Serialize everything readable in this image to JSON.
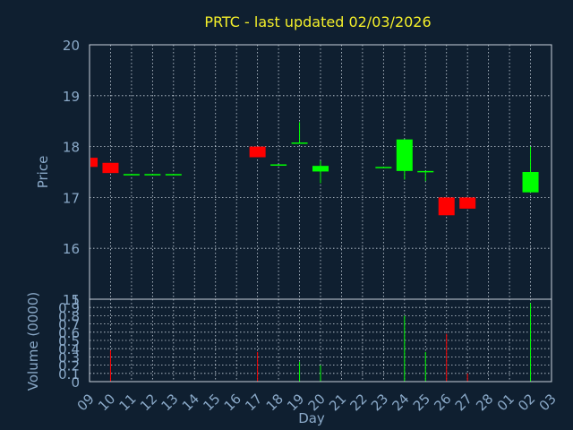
{
  "chart_data": {
    "type": "candlestick",
    "title": "PRTC - last updated 02/03/2026",
    "xlabel": "Day",
    "x_ticks": [
      "09",
      "10",
      "11",
      "12",
      "13",
      "14",
      "15",
      "16",
      "17",
      "18",
      "19",
      "20",
      "21",
      "22",
      "23",
      "24",
      "25",
      "26",
      "27",
      "28",
      "01",
      "02",
      "03"
    ],
    "price_panel": {
      "ylabel": "Price",
      "ylim": [
        15.0,
        20.0
      ],
      "y_ticks": [
        "15",
        "16",
        "17",
        "18",
        "19",
        "20"
      ],
      "candles": [
        {
          "day": "09",
          "open": 17.78,
          "close": 17.6,
          "high": 17.78,
          "low": 17.6
        },
        {
          "day": "10",
          "open": 17.68,
          "close": 17.48,
          "high": 17.68,
          "low": 17.48
        },
        {
          "day": "11",
          "open": 17.46,
          "close": 17.46,
          "high": 17.46,
          "low": 17.46
        },
        {
          "day": "12",
          "open": 17.46,
          "close": 17.46,
          "high": 17.46,
          "low": 17.46
        },
        {
          "day": "13",
          "open": 17.46,
          "close": 17.46,
          "high": 17.46,
          "low": 17.46
        },
        {
          "day": "17",
          "open": 18.0,
          "close": 17.79,
          "high": 18.0,
          "low": 17.79
        },
        {
          "day": "18",
          "open": 17.65,
          "close": 17.65,
          "high": 17.65,
          "low": 17.65
        },
        {
          "day": "19",
          "open": 18.08,
          "close": 18.08,
          "high": 18.48,
          "low": 18.08
        },
        {
          "day": "20",
          "open": 17.51,
          "close": 17.62,
          "high": 17.72,
          "low": 17.28
        },
        {
          "day": "23",
          "open": 17.6,
          "close": 17.6,
          "high": 17.6,
          "low": 17.6
        },
        {
          "day": "24",
          "open": 17.52,
          "close": 18.14,
          "high": 18.14,
          "low": 17.35
        },
        {
          "day": "25",
          "open": 17.52,
          "close": 17.52,
          "high": 17.52,
          "low": 17.32
        },
        {
          "day": "26",
          "open": 17.0,
          "close": 16.65,
          "high": 17.0,
          "low": 16.65
        },
        {
          "day": "27",
          "open": 17.0,
          "close": 16.78,
          "high": 17.0,
          "low": 16.78
        },
        {
          "day": "02",
          "open": 17.1,
          "close": 17.5,
          "high": 18.0,
          "low": 17.1
        }
      ]
    },
    "volume_panel": {
      "ylabel": "Volume (0000)",
      "ylim": [
        0,
        1
      ],
      "y_ticks": [
        "0",
        "0.1",
        "0.2",
        "0.3",
        "0.4",
        "0.5",
        "0.6",
        "0.7",
        "0.8",
        "0.9",
        "1"
      ],
      "bars": [
        {
          "day": "10",
          "value": 0.38,
          "direction": "down"
        },
        {
          "day": "17",
          "value": 0.36,
          "direction": "down"
        },
        {
          "day": "19",
          "value": 0.24,
          "direction": "up"
        },
        {
          "day": "20",
          "value": 0.2,
          "direction": "up"
        },
        {
          "day": "24",
          "value": 0.8,
          "direction": "up"
        },
        {
          "day": "25",
          "value": 0.36,
          "direction": "up"
        },
        {
          "day": "26",
          "value": 0.58,
          "direction": "down"
        },
        {
          "day": "27",
          "value": 0.1,
          "direction": "down"
        },
        {
          "day": "02",
          "value": 0.95,
          "direction": "up"
        }
      ]
    },
    "colors": {
      "up": "#00ff00",
      "down": "#ff0000",
      "background": "#0f1f30",
      "title": "#f4ef2a",
      "axis_text": "#8aa9c8",
      "frame": "#c8d2dc"
    },
    "grid": true
  }
}
